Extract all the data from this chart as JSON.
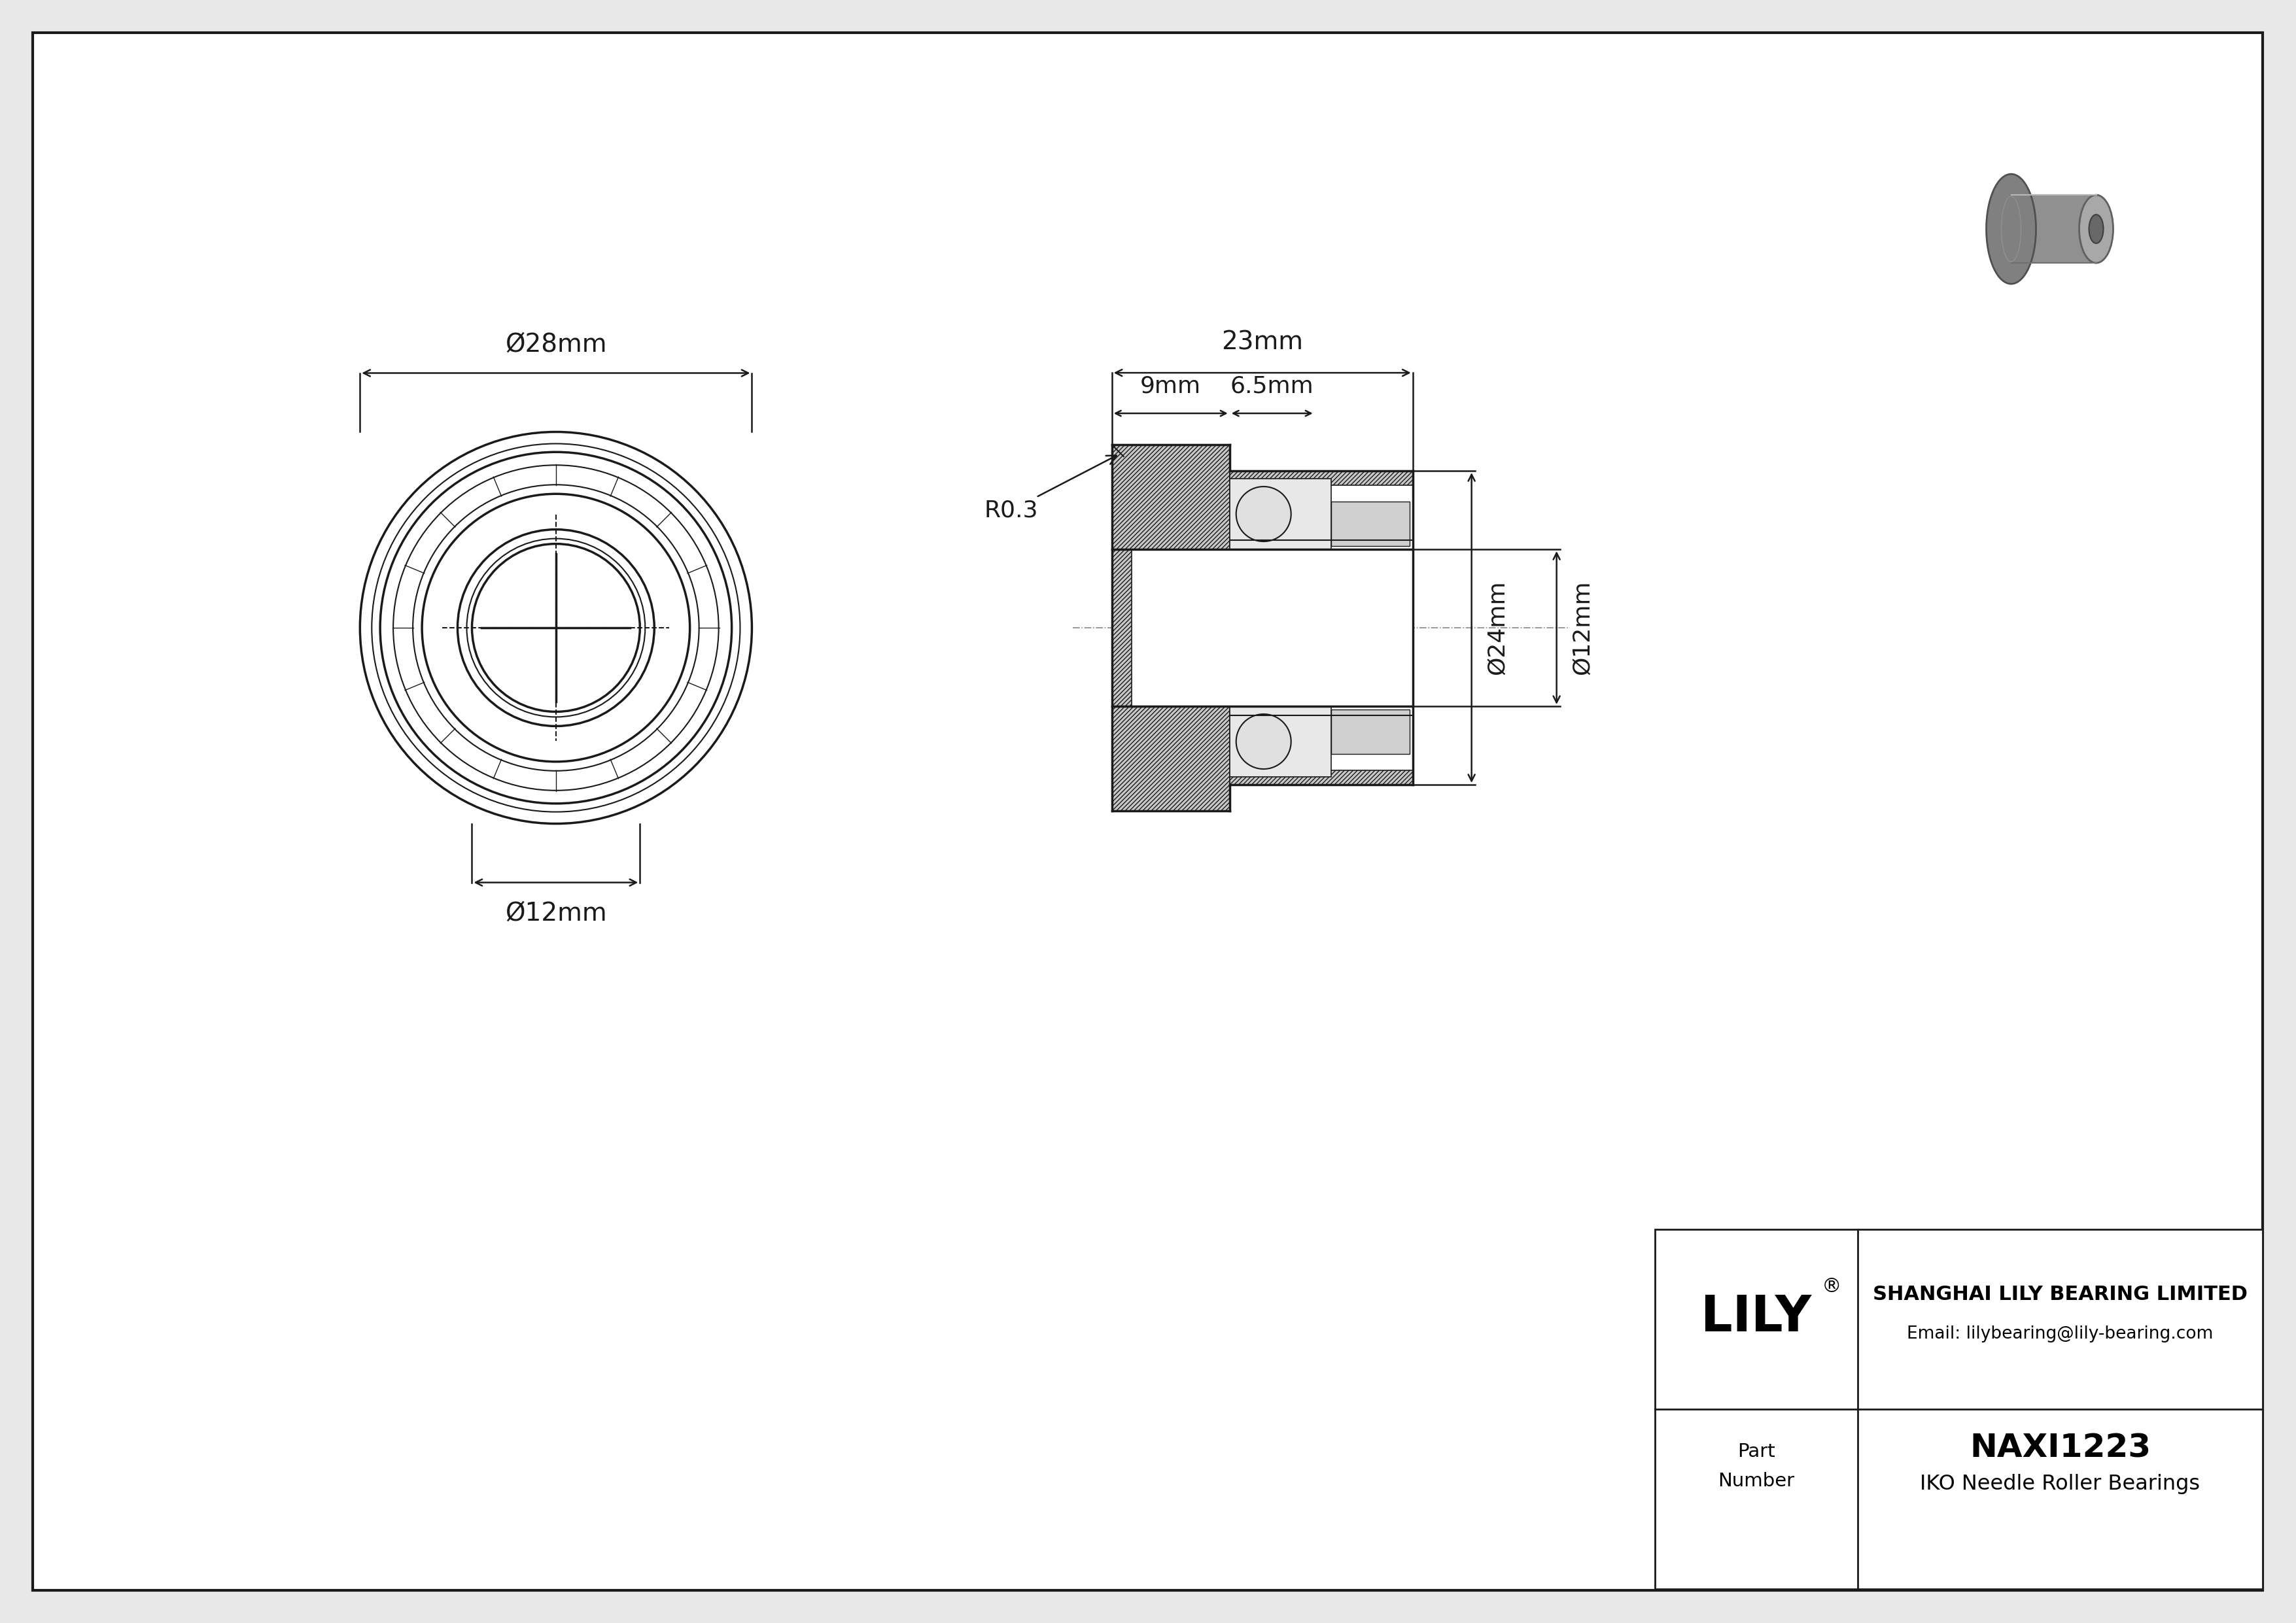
{
  "bg_color": "#e8e8e8",
  "line_color": "#1a1a1a",
  "company": "SHANGHAI LILY BEARING LIMITED",
  "email": "Email: lilybearing@lily-bearing.com",
  "part_number": "NAXI1223",
  "bearing_type": "IKO Needle Roller Bearings",
  "dim_OD": "28mm",
  "dim_ID": "12mm",
  "dim_L": "23mm",
  "dim_flange_L": "9mm",
  "dim_inner_L": "6.5mm",
  "dim_bore": "12mm",
  "dim_OD_side": "24mm",
  "dim_R": "R0.3",
  "phi_symbol": "Ø",
  "lw_main": 2.5,
  "lw_thin": 1.5,
  "lw_dim": 1.8,
  "font_dim": 28,
  "font_logo": 55
}
